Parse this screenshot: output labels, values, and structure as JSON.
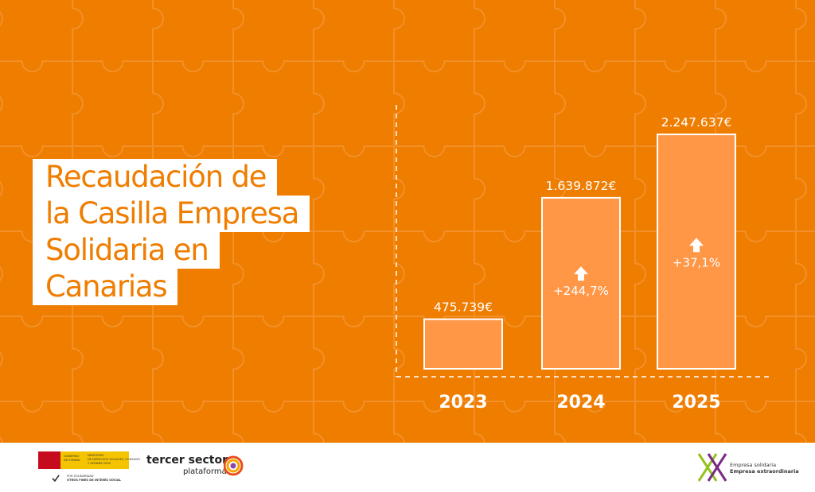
{
  "title_lines": [
    "Recaudación de",
    "la Casilla Empresa",
    "Solidaria en",
    "Canarias"
  ],
  "colors": {
    "background": "#ef7d00",
    "bar_fill": "#ff9747",
    "bar_stroke": "#ffffff",
    "title_text": "#ef7d00"
  },
  "chart_data": {
    "type": "bar",
    "categories": [
      "2023",
      "2024",
      "2025"
    ],
    "values": [
      475739,
      1639872,
      2247637
    ],
    "value_labels": [
      "475.739€",
      "1.639.872€",
      "2.247.637€"
    ],
    "changes": [
      null,
      "+244,7%",
      "+37,1%"
    ],
    "change_icon": "up-arrow-icon",
    "ylim": [
      0,
      2600000
    ],
    "grid": false,
    "legend": "none"
  },
  "footer": {
    "gov_lines": [
      "GOBIERNO",
      "DE ESPAÑA"
    ],
    "ministry_lines": [
      "MINISTERIO",
      "DE DERECHOS SOCIALES, CONSUMO",
      "Y AGENDA 2030"
    ],
    "gov_note_lines": [
      "POR SOLIDARIDAD",
      "OTROS FINES DE INTERÉS SOCIAL"
    ],
    "tercer_sector": "tercer sector",
    "plataforma": "plataforma",
    "es_line1": "Empresa solidaria",
    "es_line2": "Empresa extraordinaria"
  }
}
